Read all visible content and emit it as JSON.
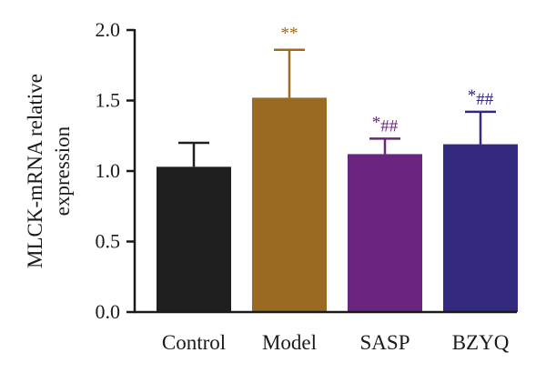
{
  "chart_data": {
    "type": "bar",
    "title": "",
    "xlabel": "",
    "ylabel": [
      "MLCK-mRNA relative",
      "expression"
    ],
    "ylim": [
      0,
      2.0
    ],
    "yticks": [
      "0.0",
      "0.5",
      "1.0",
      "1.5",
      "2.0"
    ],
    "grid": false,
    "categories": [
      "Control",
      "Model",
      "SASP",
      "BZYQ"
    ],
    "values": [
      1.03,
      1.52,
      1.12,
      1.19
    ],
    "errors": [
      0.17,
      0.34,
      0.11,
      0.23
    ],
    "colors": [
      "#1f1f1f",
      "#9a6a22",
      "#6a2580",
      "#332a80"
    ],
    "annotations": [
      {
        "category": "Model",
        "star": "**",
        "hash": ""
      },
      {
        "category": "SASP",
        "star": "*",
        "hash": "##"
      },
      {
        "category": "BZYQ",
        "star": "*",
        "hash": "##"
      }
    ]
  }
}
